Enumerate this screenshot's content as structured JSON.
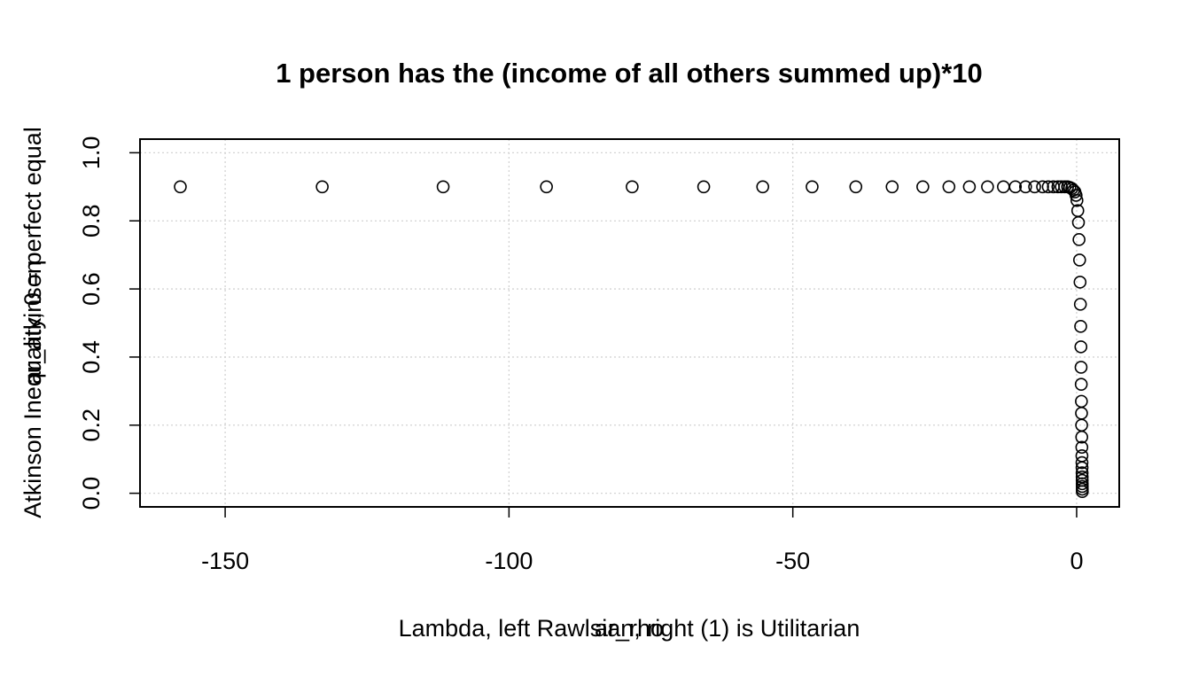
{
  "chart_data": {
    "type": "scatter",
    "title": "1 person has the (income of all others summed up)*10",
    "xlabel": "Lambda, left Rawlsian, right (1) is Utilitarian",
    "xlabel_overlay": "ar_rho",
    "ylabel": "Atkinson Inequality, 0 = perfect equal",
    "ylabel_overlay": "ar_atkinson",
    "xlim": [
      -165,
      7.5
    ],
    "ylim": [
      -0.04,
      1.04
    ],
    "x_ticks": [
      -150,
      -100,
      -50,
      0
    ],
    "x_tick_labels": [
      "-150",
      "-100",
      "-50",
      "0"
    ],
    "y_ticks": [
      0.0,
      0.2,
      0.4,
      0.6,
      0.8,
      1.0
    ],
    "y_tick_labels": [
      "0.0",
      "0.2",
      "0.4",
      "0.6",
      "0.8",
      "1.0"
    ],
    "grid": true,
    "marker": "open-circle",
    "series": [
      {
        "x": [
          -157.9,
          -132.9,
          -111.6,
          -93.4,
          -78.3,
          -65.7,
          -55.3,
          -46.6,
          -38.9,
          -32.5,
          -27.1,
          -22.5,
          -18.9,
          -15.7,
          -12.9,
          -10.8,
          -9.0,
          -7.4,
          -6.0,
          -5.0,
          -4.1,
          -3.3,
          -2.7,
          -2.1,
          -1.6,
          -1.2,
          -0.85,
          -0.55,
          -0.3,
          -0.1,
          0.05,
          0.2,
          0.32,
          0.42,
          0.52,
          0.6,
          0.66,
          0.71,
          0.75,
          0.78,
          0.81,
          0.84,
          0.86,
          0.88,
          0.9,
          0.915,
          0.93,
          0.94,
          0.95,
          0.96,
          0.97,
          0.975,
          0.98,
          0.985,
          0.99,
          0.995
        ],
        "y": [
          0.9,
          0.9,
          0.9,
          0.9,
          0.9,
          0.9,
          0.9,
          0.9,
          0.9,
          0.9,
          0.9,
          0.9,
          0.9,
          0.9,
          0.9,
          0.9,
          0.9,
          0.9,
          0.9,
          0.9,
          0.9,
          0.9,
          0.9,
          0.9,
          0.9,
          0.898,
          0.895,
          0.89,
          0.885,
          0.875,
          0.86,
          0.83,
          0.795,
          0.745,
          0.685,
          0.62,
          0.555,
          0.49,
          0.43,
          0.37,
          0.32,
          0.27,
          0.235,
          0.2,
          0.165,
          0.135,
          0.11,
          0.09,
          0.075,
          0.06,
          0.048,
          0.038,
          0.028,
          0.02,
          0.012,
          0.005
        ]
      }
    ]
  }
}
